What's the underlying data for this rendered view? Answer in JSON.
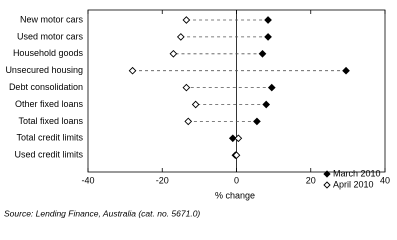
{
  "chart_data": {
    "type": "dot",
    "categories": [
      "New motor cars",
      "Used motor cars",
      "Household goods",
      "Unsecured housing",
      "Debt consolidation",
      "Other fixed loans",
      "Total fixed loans",
      "Total credit limits",
      "Used credit limits"
    ],
    "series": [
      {
        "name": "March 2010",
        "color": "#000000",
        "marker": "filled-diamond",
        "values": [
          8.5,
          8.5,
          7,
          29.5,
          9.5,
          8,
          5.5,
          -1,
          -0.3
        ]
      },
      {
        "name": "April 2010",
        "color": "#000000",
        "marker": "open-diamond",
        "values": [
          -13.5,
          -15,
          -17,
          -28,
          -13.5,
          -11,
          -13,
          0.5,
          0
        ]
      }
    ],
    "xlim": [
      -40,
      40
    ],
    "xticks": [
      -40,
      -20,
      0,
      20,
      40
    ],
    "xlabel": "% change",
    "legend": "bottom-right",
    "source": "Source: Lending Finance, Australia (cat. no. 5671.0)"
  }
}
